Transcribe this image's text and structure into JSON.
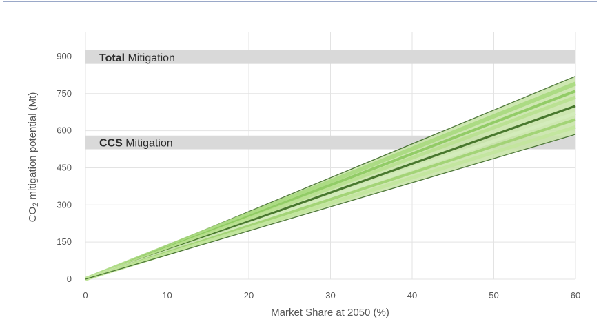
{
  "chart_data": {
    "type": "line",
    "title": "",
    "xlabel": "Market Share at 2050 (%)",
    "ylabel_main": "CO",
    "ylabel_sub": "2",
    "ylabel_rest": " mitigation potential (Mt)",
    "xlim": [
      0,
      60
    ],
    "ylim": [
      0,
      1000
    ],
    "xticks": [
      0,
      10,
      20,
      30,
      40,
      50,
      60
    ],
    "yticks": [
      0,
      150,
      300,
      450,
      600,
      750,
      900
    ],
    "grid": true,
    "bands": [
      {
        "label_bold": "Total",
        "label_rest": " Mitigation",
        "y_low": 870,
        "y_high": 925,
        "color": "#d9d9d9"
      },
      {
        "label_bold": "CCS",
        "label_rest": " Mitigation",
        "y_low": 525,
        "y_high": 580,
        "color": "#d9d9d9"
      }
    ],
    "envelope": {
      "x": [
        0,
        60
      ],
      "upper": [
        0,
        820
      ],
      "lower": [
        0,
        585
      ],
      "color": "#c6e3a4"
    },
    "series": [
      {
        "x": [
          0,
          60
        ],
        "y": [
          0,
          820
        ],
        "color": "#3f6b2a",
        "width": 1.3
      },
      {
        "x": [
          0,
          60
        ],
        "y": [
          0,
          790
        ],
        "color": "#a9d97e",
        "width": 6
      },
      {
        "x": [
          0,
          60
        ],
        "y": [
          0,
          760
        ],
        "color": "#8cc95e",
        "width": 4
      },
      {
        "x": [
          0,
          60
        ],
        "y": [
          0,
          735
        ],
        "color": "#b8e08f",
        "width": 5
      },
      {
        "x": [
          0,
          60
        ],
        "y": [
          0,
          700
        ],
        "color": "#3a6b1f",
        "width": 3.2
      },
      {
        "x": [
          0,
          60
        ],
        "y": [
          0,
          670
        ],
        "color": "#d4ecbb",
        "width": 5
      },
      {
        "x": [
          0,
          60
        ],
        "y": [
          0,
          645
        ],
        "color": "#9fd170",
        "width": 4
      },
      {
        "x": [
          0,
          60
        ],
        "y": [
          0,
          615
        ],
        "color": "#c2e59c",
        "width": 5
      },
      {
        "x": [
          0,
          60
        ],
        "y": [
          0,
          585
        ],
        "color": "#3f6b2a",
        "width": 1.3
      }
    ]
  }
}
